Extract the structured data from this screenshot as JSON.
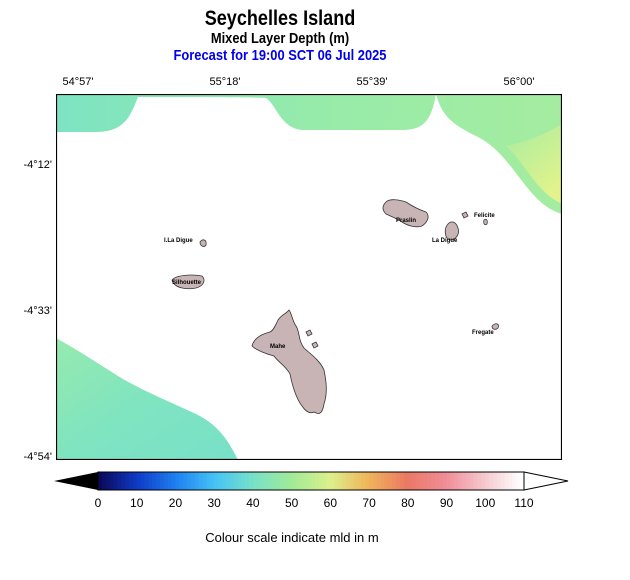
{
  "header": {
    "title": "Seychelles Island",
    "subtitle": "Mixed Layer Depth (m)",
    "forecast": "Forecast for  19:00 SCT 06 Jul 2025"
  },
  "axes": {
    "lon_labels": [
      "54°57'",
      "55°18'",
      "55°39'",
      "56°00'"
    ],
    "lat_labels": [
      "-4°12'",
      "-4°33'",
      "-4°54'"
    ]
  },
  "islands": [
    "I.La Digue",
    "Praslin",
    "Felicite",
    "La Digue",
    "Silhouette",
    "Mahe",
    "Fregate"
  ],
  "colorbar": {
    "ticks": [
      "0",
      "10",
      "20",
      "30",
      "40",
      "50",
      "60",
      "70",
      "80",
      "90",
      "100",
      "110"
    ],
    "colors": [
      "#0a0a5a",
      "#0f3cc8",
      "#1e82f0",
      "#46c3f5",
      "#78e1c8",
      "#a0eb96",
      "#dcf08c",
      "#f0b45a",
      "#eb7864",
      "#f08c96",
      "#f5c8cd",
      "#ffffff"
    ]
  },
  "caption": "Colour scale indicate mld in m"
}
